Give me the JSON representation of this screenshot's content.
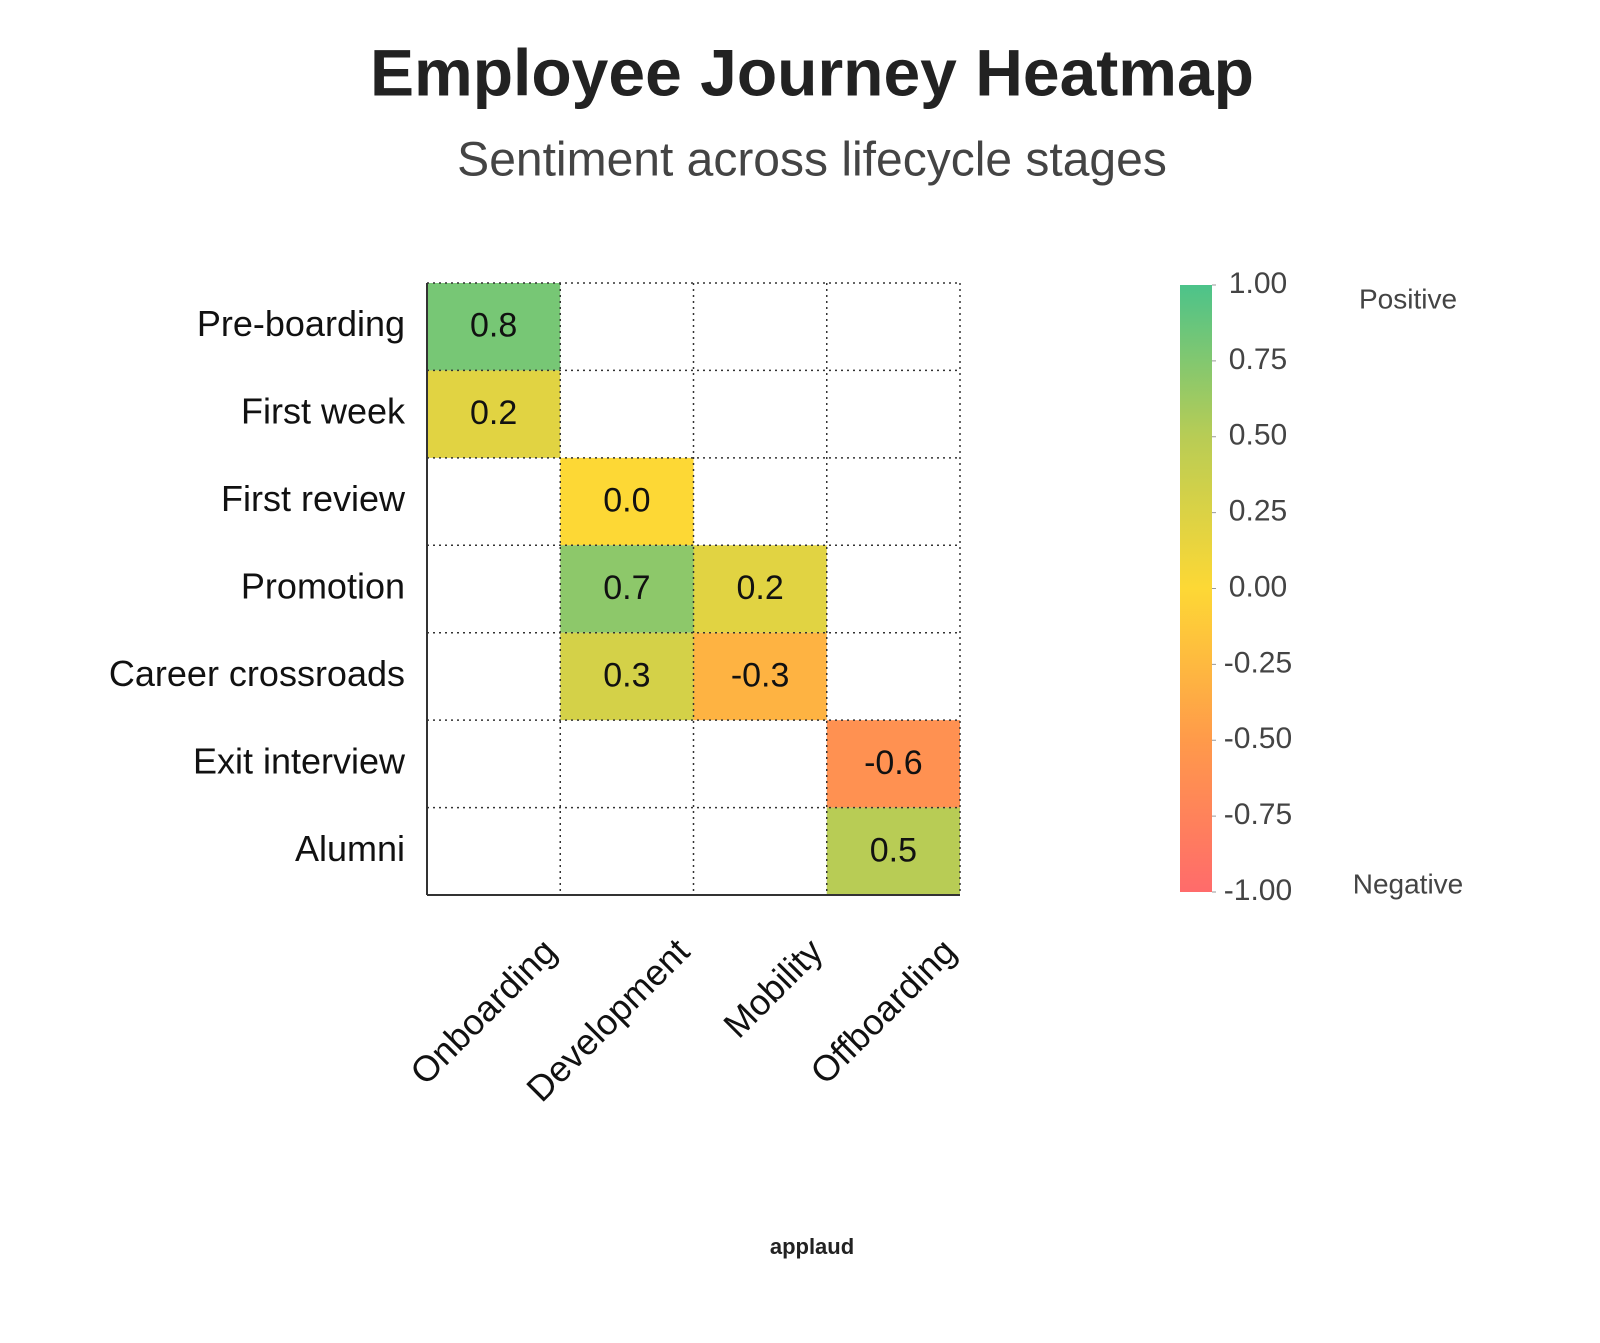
{
  "chart_data": {
    "type": "heatmap",
    "title": "Employee Journey Heatmap",
    "subtitle": "Sentiment across lifecycle stages",
    "rows": [
      "Pre-boarding",
      "First week",
      "First review",
      "Promotion",
      "Career crossroads",
      "Exit interview",
      "Alumni"
    ],
    "columns": [
      "Onboarding",
      "Development",
      "Mobility",
      "Offboarding"
    ],
    "values": [
      [
        0.8,
        null,
        null,
        null
      ],
      [
        0.2,
        null,
        null,
        null
      ],
      [
        null,
        0.0,
        null,
        null
      ],
      [
        null,
        0.7,
        0.2,
        null
      ],
      [
        null,
        0.3,
        -0.3,
        null
      ],
      [
        null,
        null,
        null,
        -0.6
      ],
      [
        null,
        null,
        null,
        0.5
      ]
    ],
    "value_labels": [
      [
        "0.8",
        null,
        null,
        null
      ],
      [
        "0.2",
        null,
        null,
        null
      ],
      [
        null,
        "0.0",
        null,
        null
      ],
      [
        null,
        "0.7",
        "0.2",
        null
      ],
      [
        null,
        "0.3",
        "-0.3",
        null
      ],
      [
        null,
        null,
        null,
        "-0.6"
      ],
      [
        null,
        null,
        null,
        "0.5"
      ]
    ],
    "colorscale": [
      "#ff6b6b",
      "#ff9a4a",
      "#fdd835",
      "#b8cc55",
      "#4cc38a"
    ],
    "clim": [
      -1,
      1
    ],
    "cticks": [
      {
        "value": 1,
        "label": "1.00"
      },
      {
        "value": 0.75,
        "label": "0.75"
      },
      {
        "value": 0.5,
        "label": "0.50"
      },
      {
        "value": 0.25,
        "label": "0.25"
      },
      {
        "value": 0,
        "label": "0.00"
      },
      {
        "value": -0.25,
        "label": "-0.25"
      },
      {
        "value": -0.5,
        "label": "-0.50"
      },
      {
        "value": -0.75,
        "label": "-0.75"
      },
      {
        "value": -1,
        "label": "-1.00"
      }
    ],
    "colorbar_high_label": "Positive",
    "colorbar_low_label": "Negative",
    "grid": true,
    "footer": "applaud"
  }
}
